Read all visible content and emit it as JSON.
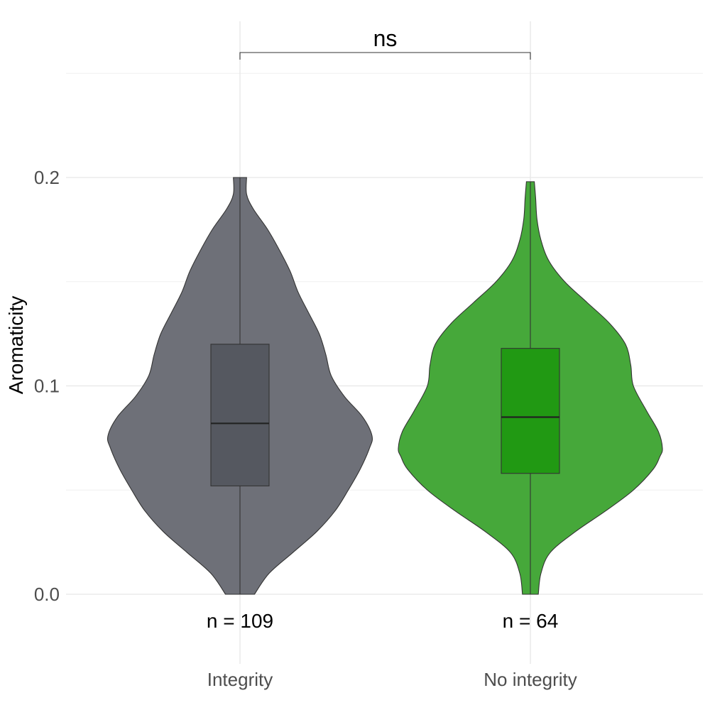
{
  "chart_data": {
    "type": "violin",
    "ylabel": "Aromaticity",
    "xlabel": "",
    "ylim": [
      -0.03,
      0.27
    ],
    "yticks": [
      0.0,
      0.1,
      0.2
    ],
    "ytick_labels": [
      "0.0",
      "0.1",
      "0.2"
    ],
    "grid": true,
    "legend": "none",
    "categories": [
      "Integrity",
      "No integrity"
    ],
    "groups": [
      {
        "name": "Integrity",
        "n_label": "n = 109",
        "color": "#6e7078",
        "box_color": "#555860",
        "box": {
          "q1": 0.052,
          "median": 0.082,
          "q3": 0.12,
          "min": 0.0,
          "max": 0.2
        },
        "density": [
          [
            0.0,
            0.11
          ],
          [
            0.01,
            0.22
          ],
          [
            0.02,
            0.4
          ],
          [
            0.03,
            0.58
          ],
          [
            0.04,
            0.72
          ],
          [
            0.05,
            0.82
          ],
          [
            0.06,
            0.91
          ],
          [
            0.07,
            0.98
          ],
          [
            0.076,
            1.0
          ],
          [
            0.085,
            0.93
          ],
          [
            0.095,
            0.79
          ],
          [
            0.105,
            0.69
          ],
          [
            0.115,
            0.65
          ],
          [
            0.125,
            0.6
          ],
          [
            0.135,
            0.52
          ],
          [
            0.145,
            0.44
          ],
          [
            0.155,
            0.38
          ],
          [
            0.165,
            0.3
          ],
          [
            0.175,
            0.21
          ],
          [
            0.185,
            0.1
          ],
          [
            0.192,
            0.05
          ],
          [
            0.2,
            0.05
          ]
        ]
      },
      {
        "name": "No integrity",
        "n_label": "n = 64",
        "color": "#46a83a",
        "box_color": "#219913",
        "box": {
          "q1": 0.058,
          "median": 0.085,
          "q3": 0.118,
          "min": 0.0,
          "max": 0.198
        },
        "density": [
          [
            0.0,
            0.06
          ],
          [
            0.01,
            0.08
          ],
          [
            0.02,
            0.15
          ],
          [
            0.03,
            0.34
          ],
          [
            0.04,
            0.57
          ],
          [
            0.05,
            0.78
          ],
          [
            0.06,
            0.93
          ],
          [
            0.066,
            0.98
          ],
          [
            0.07,
            1.0
          ],
          [
            0.078,
            0.97
          ],
          [
            0.088,
            0.88
          ],
          [
            0.1,
            0.78
          ],
          [
            0.11,
            0.76
          ],
          [
            0.12,
            0.72
          ],
          [
            0.13,
            0.6
          ],
          [
            0.14,
            0.43
          ],
          [
            0.15,
            0.26
          ],
          [
            0.16,
            0.14
          ],
          [
            0.17,
            0.08
          ],
          [
            0.18,
            0.05
          ],
          [
            0.19,
            0.04
          ],
          [
            0.198,
            0.03
          ]
        ]
      }
    ],
    "significance": {
      "label": "ns",
      "from": "Integrity",
      "to": "No integrity"
    }
  }
}
